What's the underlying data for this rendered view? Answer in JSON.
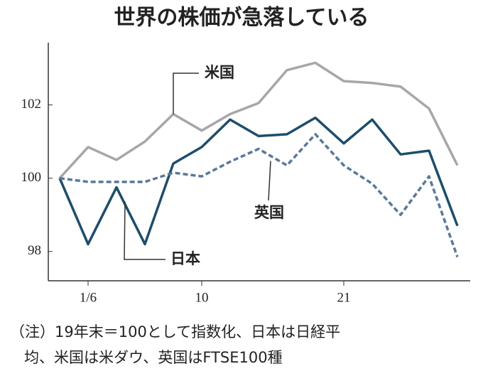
{
  "chart_data": {
    "type": "line",
    "title": "世界の株価が急落している",
    "categories": [
      null,
      "1/6",
      null,
      null,
      null,
      "10",
      null,
      null,
      null,
      null,
      "21",
      null,
      null,
      null,
      null
    ],
    "series": [
      {
        "name": "米国",
        "color": "#a8a6aa",
        "dashed": false,
        "values": [
          100,
          100.85,
          100.5,
          101.0,
          101.75,
          101.3,
          101.75,
          102.05,
          102.95,
          103.15,
          102.65,
          102.6,
          102.5,
          101.9,
          100.35
        ]
      },
      {
        "name": "日本",
        "color": "#1e4d6a",
        "dashed": false,
        "values": [
          100,
          98.2,
          99.75,
          98.2,
          100.4,
          100.85,
          101.6,
          101.15,
          101.2,
          101.65,
          100.95,
          101.6,
          100.65,
          100.75,
          98.7
        ]
      },
      {
        "name": "英国",
        "color": "#5a7898",
        "dashed": true,
        "values": [
          100,
          99.9,
          99.9,
          99.9,
          100.15,
          100.05,
          100.45,
          100.8,
          100.35,
          101.2,
          100.35,
          99.85,
          99.0,
          100.05,
          97.85
        ]
      }
    ],
    "ylim": [
      97.2,
      103.7
    ],
    "yticks": [
      98,
      100,
      102
    ],
    "note": [
      "（注）19年末＝100として指数化、日本は日経平",
      "均、米国は米ダウ、英国はFTSE100種"
    ]
  }
}
